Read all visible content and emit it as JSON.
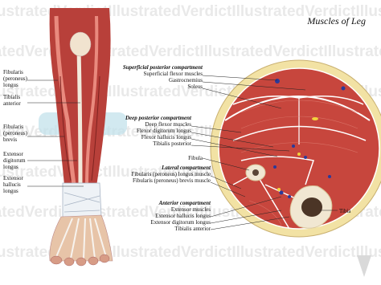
{
  "title": "Muscles of Leg",
  "watermark": "IllustratedVerdictIllustratedVerdictIllustratedVerdictIllustratedVerdict",
  "left_labels": [
    {
      "lines": [
        "Fibularis",
        "(peroneus)",
        "longus"
      ]
    },
    {
      "lines": [
        "Tibialis",
        "anterior"
      ]
    },
    {
      "lines": [
        "Fibularis",
        "(peroneus)",
        "brevis"
      ]
    },
    {
      "lines": [
        "Extensor",
        "digitorum",
        "longus"
      ]
    },
    {
      "lines": [
        "Extensor",
        "hallucis",
        "longus"
      ]
    }
  ],
  "compartments": [
    {
      "heading": "Superficial posterior compartment",
      "items": [
        "Superficial flexor muscles",
        "Gastrocnemius",
        "Soleus"
      ]
    },
    {
      "heading": "Deep posterior compartment",
      "items": [
        "Deep flexor muscles",
        "Flexor digitorum longus",
        "Flexor hallucis longus",
        "Tibialis posterior"
      ]
    },
    {
      "heading": "Lateral compartment",
      "items": [
        "Fibularis (peroneus) longus muscle",
        "Fibularis (peroneus) brevis muscle"
      ]
    },
    {
      "heading": "Anterior compartment",
      "items": [
        "Extensor muscles",
        "Extensor hallucis longus",
        "Extensor digitorum longus",
        "Tibialis anterior"
      ]
    }
  ],
  "bones": {
    "fibula": "Fibula",
    "tibia": "Tibia"
  }
}
